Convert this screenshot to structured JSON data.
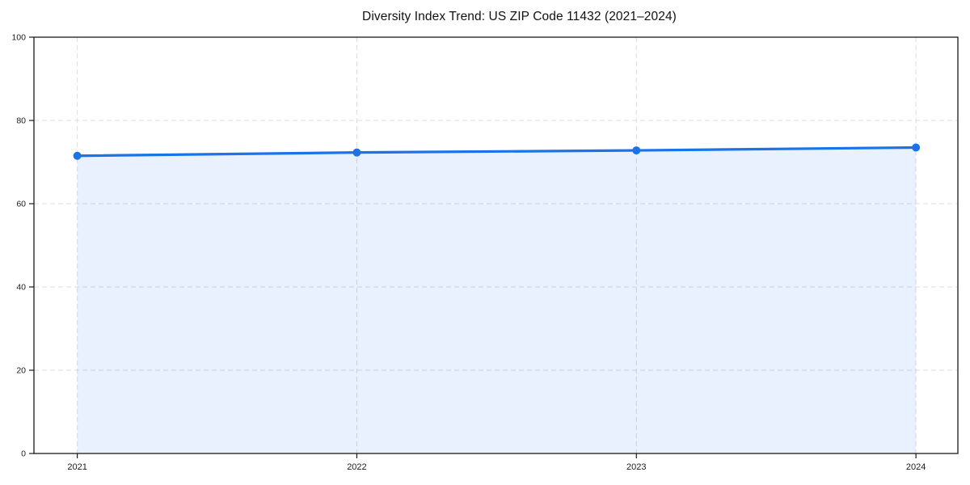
{
  "figure": {
    "background": "#ffffff"
  },
  "chart_data": {
    "type": "line",
    "title": "Diversity Index Trend: US ZIP Code 11432 (2021–2024)",
    "xlabel": "",
    "ylabel": "",
    "x": [
      2021,
      2022,
      2023,
      2024
    ],
    "x_tick_labels": [
      "2021",
      "2022",
      "2023",
      "2024"
    ],
    "series": [
      {
        "name": "Diversity Index",
        "values": [
          71.5,
          72.3,
          72.8,
          73.5
        ]
      }
    ],
    "xlim": [
      2020.845,
      2024.15
    ],
    "ylim": [
      0,
      100
    ],
    "yticks": [
      0,
      20,
      40,
      60,
      80,
      100
    ],
    "grid": true,
    "grid_style": "dashed",
    "area_fill": true,
    "legend": "none",
    "marker": "circle",
    "colors": {
      "line": "#1a73e8",
      "marker": "#1a73e8",
      "area_fill": "rgba(26,115,232,0.10)",
      "gridline": "#dcdcdc",
      "axis": "#1a1a1a",
      "tick_label": "#1a1a1a",
      "title": "#111111",
      "background": "#ffffff"
    }
  }
}
